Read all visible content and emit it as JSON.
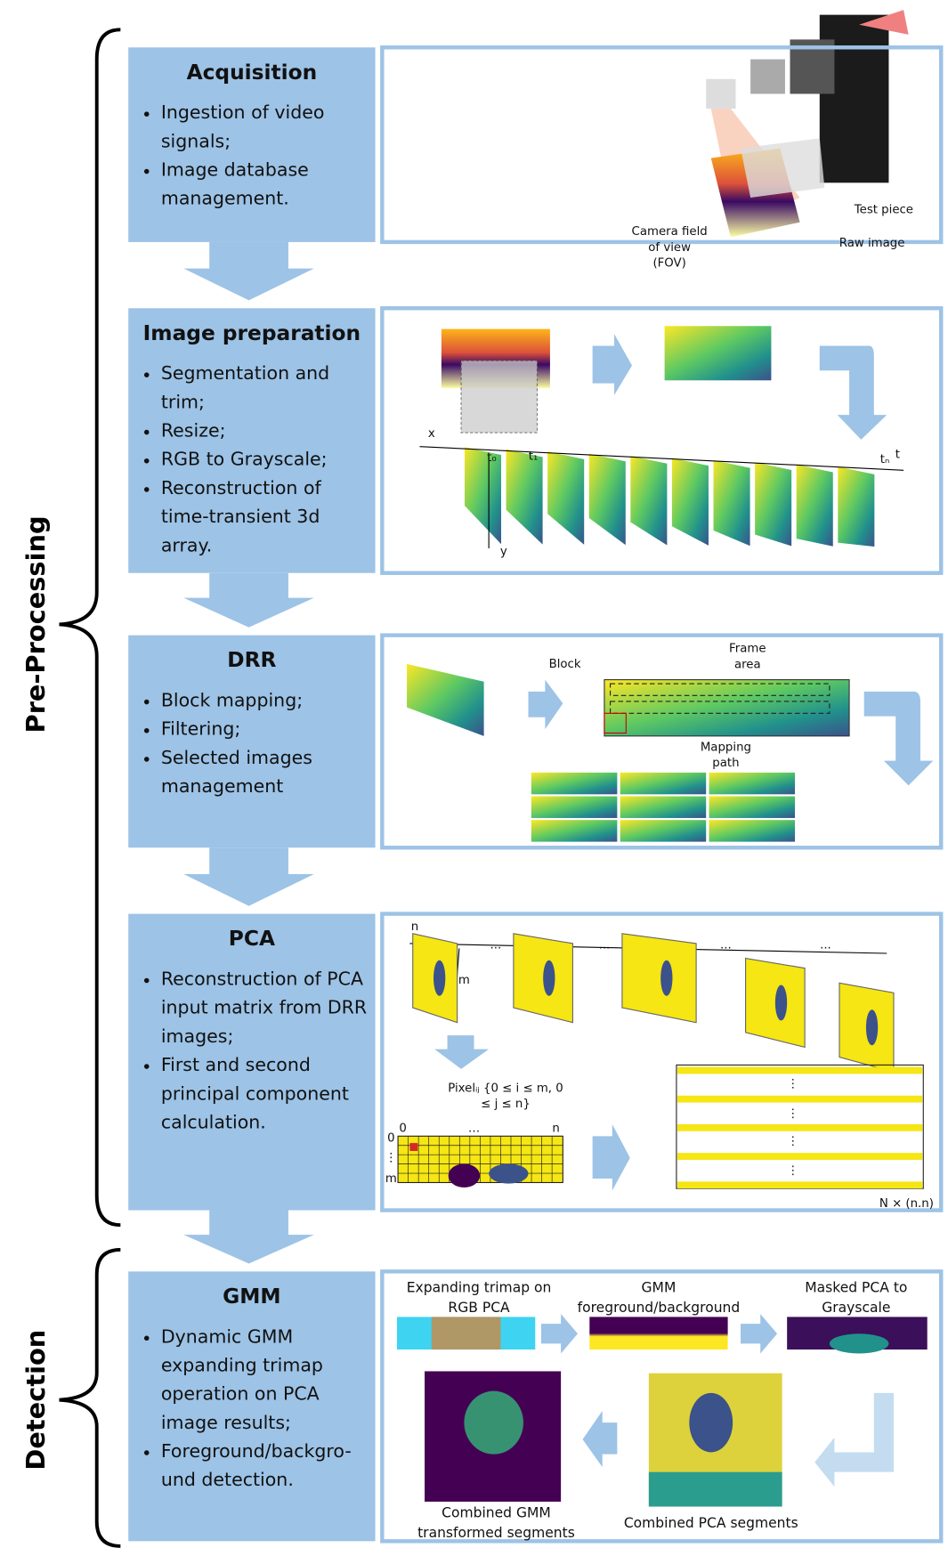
{
  "groups": [
    {
      "label": "Pre-Processing"
    },
    {
      "label": "Detection"
    }
  ],
  "stages": [
    {
      "title": "Acquisition",
      "bullets": [
        "Ingestion of video signals;",
        "Image database management."
      ],
      "figure_labels": [
        "Camera field of view (FOV)",
        "Test piece",
        "Raw image"
      ]
    },
    {
      "title": "Image preparation",
      "bullets": [
        "Segmentation and trim;",
        "Resize;",
        "RGB to Grayscale;",
        "Reconstruction of time-transient 3d array."
      ],
      "figure_labels": [
        "x",
        "y",
        "t",
        "t₀",
        "t₁",
        "tₙ"
      ]
    },
    {
      "title": "DRR",
      "bullets": [
        "Block mapping;",
        "Filtering;",
        "Selected images management"
      ],
      "figure_labels": [
        "Block",
        "Frame area",
        "Mapping path"
      ]
    },
    {
      "title": "PCA",
      "bullets": [
        "Reconstruction of PCA input matrix from DRR images;",
        "First and second principal component calculation."
      ],
      "figure_labels": [
        "n",
        "m",
        "···",
        "···",
        "···",
        "···",
        "Pixelᵢⱼ {0 ≤ i ≤ m, 0 ≤ j ≤ n}",
        "0",
        "…",
        "n",
        "0",
        "⋮",
        "m",
        "⋮",
        "⋮",
        "⋮",
        "⋮",
        "N × (n.n)"
      ]
    },
    {
      "title": "GMM",
      "bullets": [
        "Dynamic GMM expanding trimap operation on PCA image results;",
        "Foreground/backgro-und detection."
      ],
      "figure_labels": [
        "Expanding trimap on RGB PCA",
        "GMM foreground/background",
        "Masked PCA to Grayscale",
        "Combined GMM transformed segments",
        "Combined PCA segments"
      ]
    }
  ]
}
